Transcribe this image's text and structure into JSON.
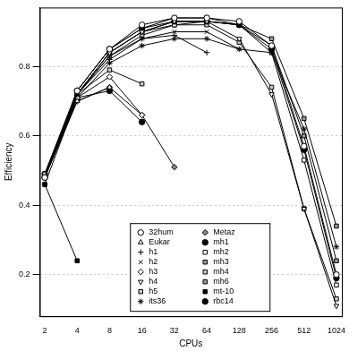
{
  "chart_data": {
    "type": "line",
    "x_label": "CPUs",
    "y_label": "Efficiency",
    "x": [
      2,
      4,
      8,
      16,
      32,
      64,
      128,
      256,
      512,
      1024
    ],
    "xlim": [
      1.8,
      1150
    ],
    "xticks": [
      2,
      4,
      8,
      16,
      32,
      64,
      128,
      256,
      512,
      1024
    ],
    "ylim": [
      0.08,
      0.97
    ],
    "yticks": [
      0.2,
      0.4,
      0.6,
      0.8
    ],
    "log": "x",
    "grid": true,
    "legend": "bottom",
    "series": [
      {
        "name": "32hum",
        "color": "#000000",
        "marker": "circle",
        "values": [
          0.48,
          0.73,
          0.85,
          0.92,
          0.94,
          0.94,
          0.93,
          0.86,
          0.57,
          0.2
        ]
      },
      {
        "name": "Eukar",
        "color": "#000000",
        "marker": "triangle",
        "values": [
          0.48,
          0.7,
          0.74,
          null,
          null,
          null,
          null,
          null,
          null,
          null
        ]
      },
      {
        "name": "h1",
        "color": "#000000",
        "marker": "plus",
        "values": [
          0.48,
          0.72,
          0.82,
          0.88,
          0.89,
          0.84,
          null,
          null,
          null,
          null
        ]
      },
      {
        "name": "h2",
        "color": "#000000",
        "marker": "x",
        "values": [
          0.48,
          0.72,
          0.83,
          0.88,
          0.9,
          0.9,
          0.85,
          null,
          null,
          null
        ]
      },
      {
        "name": "h3",
        "color": "#000000",
        "marker": "diamond",
        "values": [
          0.48,
          0.71,
          0.77,
          0.66,
          null,
          null,
          null,
          null,
          null,
          null
        ]
      },
      {
        "name": "h4",
        "color": "#000000",
        "marker": "triangle_down",
        "values": [
          0.48,
          0.72,
          0.84,
          0.9,
          0.93,
          0.93,
          0.88,
          0.72,
          0.39,
          0.11
        ]
      },
      {
        "name": "h5",
        "color": "#000000",
        "marker": "square_x",
        "values": [
          0.49,
          0.72,
          0.79,
          0.75,
          null,
          null,
          null,
          null,
          null,
          null
        ]
      },
      {
        "name": "its36",
        "color": "#000000",
        "marker": "star",
        "values": [
          0.46,
          0.71,
          0.81,
          0.86,
          0.88,
          0.88,
          0.85,
          0.84,
          0.62,
          0.28
        ]
      },
      {
        "name": "Metaz",
        "color": "#000000",
        "marker": "diamond_filled",
        "values": [
          0.48,
          0.7,
          0.74,
          0.66,
          0.51,
          null,
          null,
          null,
          null,
          null
        ]
      },
      {
        "name": "mh1",
        "color": "#000000",
        "marker": "circle_filled",
        "values": [
          0.49,
          0.73,
          0.85,
          0.91,
          0.93,
          0.93,
          0.92,
          0.85,
          0.56,
          0.19
        ]
      },
      {
        "name": "mh2",
        "color": "#000000",
        "marker": "square",
        "values": [
          0.48,
          0.72,
          0.84,
          0.9,
          0.92,
          0.93,
          0.92,
          0.84,
          0.53,
          0.17
        ]
      },
      {
        "name": "mh3",
        "color": "#000000",
        "marker": "square_gray",
        "values": [
          0.48,
          0.72,
          0.84,
          0.9,
          0.93,
          0.93,
          0.92,
          0.86,
          0.6,
          0.24
        ]
      },
      {
        "name": "mh4",
        "color": "#000000",
        "marker": "square_x",
        "values": [
          0.48,
          0.72,
          0.83,
          0.89,
          0.92,
          0.92,
          0.87,
          0.74,
          0.39,
          0.13
        ]
      },
      {
        "name": "mh6",
        "color": "#000000",
        "marker": "square_gray",
        "values": [
          0.49,
          0.73,
          0.85,
          0.91,
          0.94,
          0.94,
          0.92,
          0.88,
          0.65,
          0.34
        ]
      },
      {
        "name": "mt-10",
        "color": "#000000",
        "marker": "square_filled",
        "values": [
          0.46,
          0.24,
          null,
          null,
          null,
          null,
          null,
          null,
          null,
          null
        ]
      },
      {
        "name": "rbc14",
        "color": "#000000",
        "marker": "circle_filled",
        "values": [
          0.48,
          0.71,
          0.73,
          0.64,
          null,
          null,
          null,
          null,
          null,
          null
        ]
      }
    ]
  }
}
